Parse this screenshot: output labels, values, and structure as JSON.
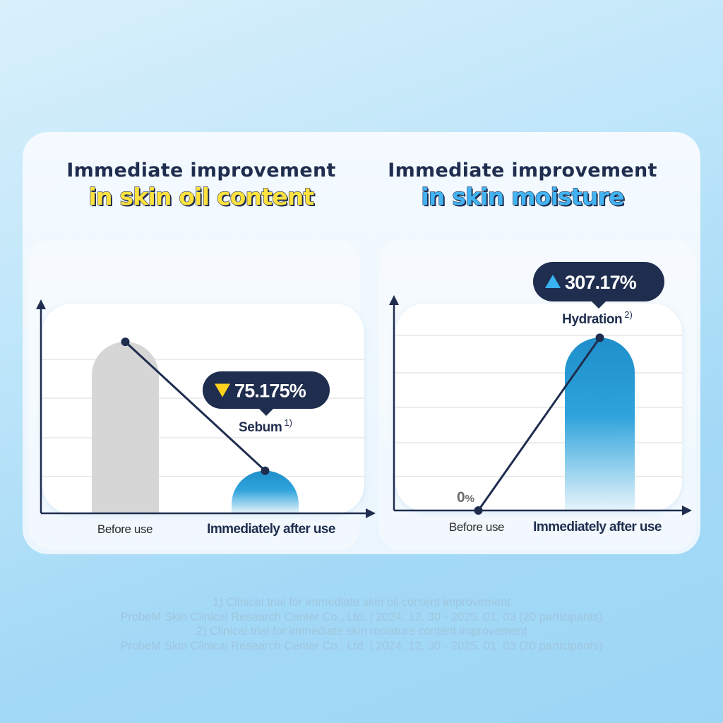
{
  "colors": {
    "navy": "#1f2d4f",
    "highlight_yellow": "#ffe23f",
    "highlight_blue": "#43b4f2",
    "bar_gray": "#d6d6d6",
    "bar_blue_top": "#1e8fca",
    "bar_blue_bottom": "#e6f4fb",
    "down_triangle": "#ffd21f",
    "up_triangle": "#38b2f0"
  },
  "panels": [
    {
      "title_line1": "Immediate improvement",
      "title_line2": "in skin oil content",
      "highlight": "yellow"
    },
    {
      "title_line1": "Immediate improvement",
      "title_line2": "in skin moisture",
      "highlight": "blue"
    }
  ],
  "chart_data": [
    {
      "type": "bar",
      "categories": [
        "Before use",
        "Immediately after use"
      ],
      "values": [
        100,
        24.825
      ],
      "ylim": [
        0,
        120
      ],
      "grid": true,
      "series_label": "Sebum",
      "series_footnote": "1)",
      "change_label": "75.175%",
      "change_direction": "down",
      "value_labels": [
        "",
        ""
      ]
    },
    {
      "type": "bar",
      "categories": [
        "Before use",
        "Immediately after use"
      ],
      "values": [
        0,
        307.17
      ],
      "ylim": [
        0,
        360
      ],
      "grid": true,
      "series_label": "Hydration",
      "series_footnote": "2)",
      "change_label": "307.17%",
      "change_direction": "up",
      "value_labels": [
        "0%",
        ""
      ]
    }
  ],
  "footnotes": [
    "1) Clinical trial for immediate skin oil content improvement",
    "ProbeM Skin Clinical Research Center Co., Ltd. | 2024. 12. 30 - 2025. 01. 03 (20 participants)",
    "2) Clinical trial for immediate skin moisture content improvement",
    "ProbeM Skin Clinical Research Center Co., Ltd. | 2024. 12. 30 - 2025. 01. 03 (20 participants)"
  ]
}
